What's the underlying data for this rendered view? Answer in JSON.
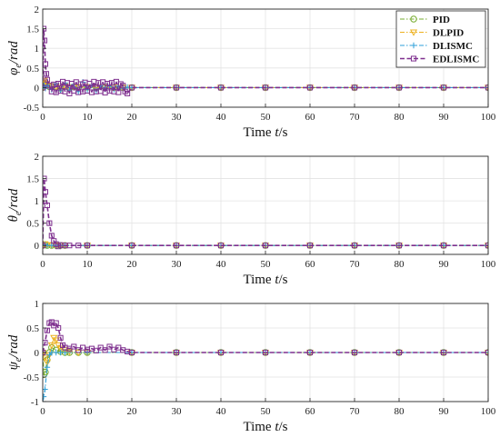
{
  "colors": {
    "PID": "#77ac30",
    "DLPID": "#edb120",
    "DLISMC": "#2e9fd8",
    "EDLISMC": "#7e2f8e"
  },
  "chart_data": [
    {
      "type": "line",
      "xlabel_main": "Time ",
      "xlabel_italic": "t",
      "xlabel_unit": "/s",
      "ylabel_main": "φ",
      "ylabel_sub": "e",
      "ylabel_unit": "/rad",
      "xlim": [
        0,
        100
      ],
      "ylim": [
        -0.5,
        2
      ],
      "xticks": [
        0,
        10,
        20,
        30,
        40,
        50,
        60,
        70,
        80,
        90,
        100
      ],
      "yticks": [
        -0.5,
        0,
        0.5,
        1,
        1.5,
        2
      ],
      "ytick_labels": [
        "-0.5",
        "0",
        "0.5",
        "1",
        "1.5",
        "2"
      ],
      "grid": true,
      "legend": "top-right",
      "series": [
        {
          "name": "PID",
          "marker": "circle",
          "x": [
            0,
            0.3,
            0.6,
            1,
            1.5,
            2,
            3,
            4,
            5,
            6,
            7,
            8,
            10,
            12,
            14,
            16,
            18,
            20,
            30,
            40,
            50,
            60,
            70,
            80,
            90,
            100
          ],
          "y": [
            0,
            0.12,
            0.08,
            0.05,
            0.02,
            0.03,
            0.02,
            -0.02,
            0.03,
            -0.01,
            0.02,
            0,
            0.01,
            0,
            0.01,
            0,
            0,
            0,
            0,
            0,
            0,
            0,
            0,
            0,
            0,
            0
          ]
        },
        {
          "name": "DLPID",
          "marker": "triangle",
          "x": [
            0,
            0.3,
            0.6,
            1,
            2,
            3,
            4,
            5,
            6,
            7,
            8,
            10,
            12,
            14,
            16,
            18,
            20,
            30,
            40,
            50,
            60,
            70,
            80,
            90,
            100
          ],
          "y": [
            0,
            0.18,
            0.1,
            0.05,
            0.03,
            0.02,
            -0.03,
            0.04,
            -0.02,
            0.02,
            0.01,
            0.01,
            0,
            0,
            0,
            0,
            0,
            0,
            0,
            0,
            0,
            0,
            0,
            0,
            0
          ]
        },
        {
          "name": "DLISMC",
          "marker": "plus",
          "x": [
            0,
            0.3,
            0.6,
            1,
            2,
            3,
            4,
            5,
            6,
            7,
            8,
            9,
            10,
            11,
            12,
            13,
            14,
            15,
            16,
            17,
            18,
            19,
            20,
            30,
            40,
            50,
            60,
            70,
            80,
            90,
            100
          ],
          "y": [
            0,
            0.05,
            -0.02,
            0.06,
            -0.05,
            0.1,
            -0.08,
            0.12,
            -0.06,
            0.08,
            -0.1,
            0.14,
            -0.05,
            0.06,
            -0.08,
            0.05,
            -0.04,
            0.06,
            -0.05,
            0.04,
            -0.02,
            0.01,
            0,
            0,
            0,
            0,
            0,
            0,
            0,
            0,
            0
          ]
        },
        {
          "name": "EDLISMC",
          "marker": "square",
          "x": [
            0,
            0.2,
            0.4,
            0.6,
            0.8,
            1,
            1.5,
            2,
            2.5,
            3,
            3.5,
            4,
            4.5,
            5,
            5.5,
            6,
            6.5,
            7,
            7.5,
            8,
            8.5,
            9,
            9.5,
            10,
            10.5,
            11,
            11.5,
            12,
            12.5,
            13,
            13.5,
            14,
            14.5,
            15,
            15.5,
            16,
            16.5,
            17,
            17.5,
            18,
            18.5,
            19,
            20,
            30,
            40,
            50,
            60,
            70,
            80,
            90,
            100
          ],
          "y": [
            0,
            1.5,
            1.2,
            0.6,
            0.35,
            0.2,
            0.05,
            -0.1,
            0.08,
            -0.12,
            0.1,
            -0.08,
            0.15,
            -0.1,
            0.12,
            -0.15,
            0.1,
            -0.08,
            0.14,
            -0.12,
            0.09,
            -0.1,
            0.13,
            -0.08,
            0.1,
            -0.12,
            0.15,
            -0.1,
            0.12,
            -0.09,
            0.14,
            -0.13,
            0.1,
            -0.08,
            0.12,
            -0.1,
            0.15,
            -0.12,
            0.09,
            0.05,
            -0.1,
            -0.15,
            0,
            0,
            0,
            0,
            0,
            0,
            0,
            0,
            0
          ]
        }
      ]
    },
    {
      "type": "line",
      "xlabel_main": "Time ",
      "xlabel_italic": "t",
      "xlabel_unit": "/s",
      "ylabel_main": "θ",
      "ylabel_sub": "e",
      "ylabel_unit": "/rad",
      "xlim": [
        0,
        100
      ],
      "ylim": [
        -0.2,
        2
      ],
      "xticks": [
        0,
        10,
        20,
        30,
        40,
        50,
        60,
        70,
        80,
        90,
        100
      ],
      "yticks": [
        0,
        0.5,
        1,
        1.5,
        2
      ],
      "ytick_labels": [
        "0",
        "0.5",
        "1",
        "1.5",
        "2"
      ],
      "grid": true,
      "series": [
        {
          "name": "PID",
          "marker": "circle",
          "x": [
            0,
            0.5,
            1,
            2,
            3,
            4,
            5,
            10,
            20,
            30,
            40,
            50,
            60,
            70,
            80,
            90,
            100
          ],
          "y": [
            0,
            0.02,
            0,
            0,
            0,
            0,
            0,
            0,
            0,
            0,
            0,
            0,
            0,
            0,
            0,
            0,
            0
          ]
        },
        {
          "name": "DLPID",
          "marker": "triangle",
          "x": [
            0,
            0.5,
            1,
            2,
            3,
            4,
            5,
            10,
            20,
            30,
            40,
            50,
            60,
            70,
            80,
            90,
            100
          ],
          "y": [
            0,
            0.03,
            0.01,
            0,
            0,
            0,
            0,
            0,
            0,
            0,
            0,
            0,
            0,
            0,
            0,
            0,
            0
          ]
        },
        {
          "name": "DLISMC",
          "marker": "plus",
          "x": [
            0,
            0.5,
            1,
            2,
            3,
            4,
            5,
            10,
            20,
            30,
            40,
            50,
            60,
            70,
            80,
            90,
            100
          ],
          "y": [
            0,
            0.02,
            0,
            0,
            0,
            0,
            0,
            0,
            0,
            0,
            0,
            0,
            0,
            0,
            0,
            0,
            0
          ]
        },
        {
          "name": "EDLISMC",
          "marker": "square",
          "x": [
            0,
            0.3,
            0.6,
            1,
            1.5,
            2,
            2.5,
            3,
            3.5,
            4,
            5,
            6,
            8,
            10,
            20,
            30,
            40,
            50,
            60,
            70,
            80,
            90,
            100
          ],
          "y": [
            0,
            1.5,
            1.2,
            0.9,
            0.5,
            0.22,
            0.1,
            0.03,
            -0.02,
            0.01,
            0,
            0,
            0,
            0,
            0,
            0,
            0,
            0,
            0,
            0,
            0,
            0,
            0
          ]
        }
      ]
    },
    {
      "type": "line",
      "xlabel_main": "Time ",
      "xlabel_italic": "t",
      "xlabel_unit": "/s",
      "ylabel_main": "ψ",
      "ylabel_sub": "e",
      "ylabel_unit": "/rad",
      "xlim": [
        0,
        100
      ],
      "ylim": [
        -1,
        1
      ],
      "xticks": [
        0,
        10,
        20,
        30,
        40,
        50,
        60,
        70,
        80,
        90,
        100
      ],
      "yticks": [
        -1,
        -0.5,
        0,
        0.5,
        1
      ],
      "ytick_labels": [
        "-1",
        "-0.5",
        "0",
        "0.5",
        "1"
      ],
      "grid": true,
      "series": [
        {
          "name": "PID",
          "marker": "circle",
          "x": [
            0,
            0.3,
            0.6,
            1,
            1.5,
            2,
            3,
            4,
            5,
            6,
            8,
            10,
            20,
            30,
            40,
            50,
            60,
            70,
            80,
            90,
            100
          ],
          "y": [
            0,
            -0.45,
            -0.4,
            -0.15,
            0.0,
            0.1,
            0.05,
            0.02,
            0,
            0,
            0,
            0,
            0,
            0,
            0,
            0,
            0,
            0,
            0,
            0,
            0
          ]
        },
        {
          "name": "DLPID",
          "marker": "triangle",
          "x": [
            0,
            0.5,
            1,
            1.5,
            2,
            2.5,
            3,
            3.5,
            4,
            5,
            6,
            8,
            10,
            20,
            30,
            40,
            50,
            60,
            70,
            80,
            90,
            100
          ],
          "y": [
            0,
            -0.1,
            -0.2,
            -0.05,
            0.15,
            0.3,
            0.25,
            0.15,
            0.08,
            0.05,
            0.02,
            0,
            0,
            0,
            0,
            0,
            0,
            0,
            0,
            0,
            0,
            0
          ]
        },
        {
          "name": "DLISMC",
          "marker": "plus",
          "x": [
            0,
            0.2,
            0.5,
            1,
            1.5,
            2,
            3,
            4,
            5,
            10,
            20,
            30,
            40,
            50,
            60,
            70,
            80,
            90,
            100
          ],
          "y": [
            -1,
            -0.9,
            -0.75,
            -0.3,
            -0.05,
            0,
            0,
            0,
            0,
            0,
            0,
            0,
            0,
            0,
            0,
            0,
            0,
            0,
            0
          ]
        },
        {
          "name": "EDLISMC",
          "marker": "square",
          "x": [
            0,
            0.5,
            1,
            1.5,
            2,
            2.5,
            3,
            3.5,
            4,
            4.5,
            5,
            6,
            7,
            8,
            9,
            10,
            11,
            12,
            13,
            14,
            15,
            16,
            17,
            18,
            19,
            20,
            30,
            40,
            50,
            60,
            70,
            80,
            90,
            100
          ],
          "y": [
            0,
            0.2,
            0.45,
            0.6,
            0.62,
            0.55,
            0.6,
            0.5,
            0.3,
            0.15,
            0.1,
            0.08,
            0.12,
            0.05,
            0.1,
            0.06,
            0.08,
            0.04,
            0.1,
            0.05,
            0.12,
            0.06,
            0.1,
            0.05,
            0.02,
            0,
            0,
            0,
            0,
            0,
            0,
            0,
            0,
            0
          ]
        }
      ]
    }
  ]
}
